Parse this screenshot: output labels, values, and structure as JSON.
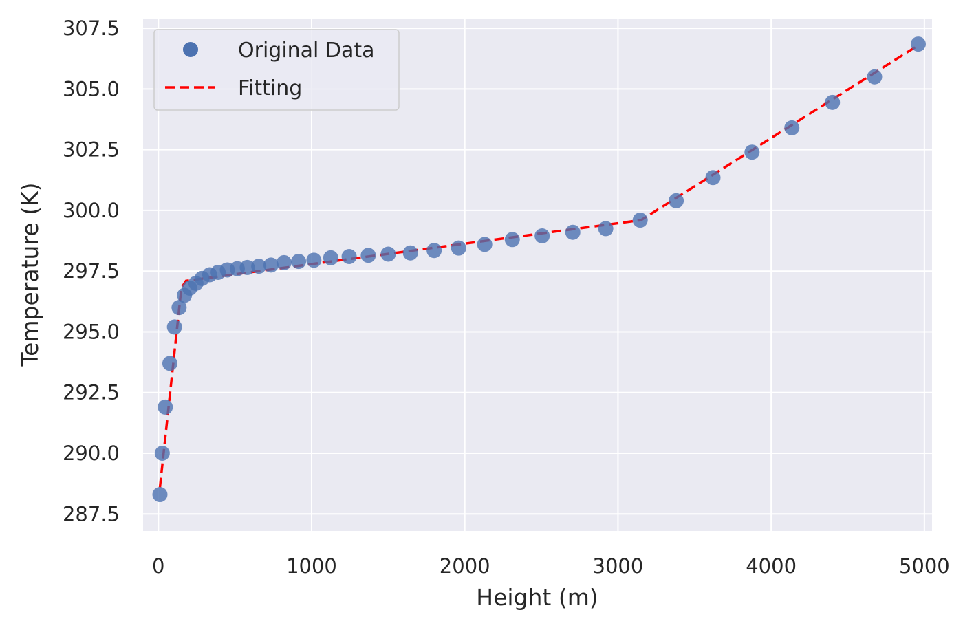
{
  "chart_data": {
    "type": "scatter",
    "xlabel": "Height (m)",
    "ylabel": "Temperature (K)",
    "xlim": [
      -100,
      5050
    ],
    "ylim": [
      286.8,
      307.9
    ],
    "xticks": [
      0,
      1000,
      2000,
      3000,
      4000,
      5000
    ],
    "xtick_labels": [
      "0",
      "1000",
      "2000",
      "3000",
      "4000",
      "5000"
    ],
    "yticks": [
      287.5,
      290.0,
      292.5,
      295.0,
      297.5,
      300.0,
      302.5,
      305.0,
      307.5
    ],
    "ytick_labels": [
      "287.5",
      "290.0",
      "292.5",
      "295.0",
      "297.5",
      "300.0",
      "302.5",
      "305.0",
      "307.5"
    ],
    "grid": true,
    "legend_position": "top-left",
    "colors": {
      "background": "#eaeaf2",
      "grid": "#ffffff",
      "points": "#4c72b0",
      "fit": "#ff0000"
    },
    "series": [
      {
        "name": "Original Data",
        "kind": "points",
        "x": [
          10,
          25,
          45,
          75,
          105,
          135,
          170,
          205,
          245,
          285,
          335,
          390,
          450,
          515,
          580,
          655,
          735,
          820,
          915,
          1015,
          1125,
          1245,
          1370,
          1500,
          1645,
          1800,
          1960,
          2130,
          2310,
          2505,
          2705,
          2920,
          3145,
          3380,
          3620,
          3875,
          4135,
          4400,
          4675,
          4960
        ],
        "y": [
          288.3,
          290.0,
          291.9,
          293.7,
          295.2,
          296.0,
          296.5,
          296.8,
          297.0,
          297.2,
          297.35,
          297.45,
          297.55,
          297.6,
          297.65,
          297.7,
          297.75,
          297.85,
          297.9,
          297.95,
          298.05,
          298.1,
          298.15,
          298.2,
          298.25,
          298.35,
          298.45,
          298.6,
          298.8,
          298.95,
          299.1,
          299.25,
          299.6,
          300.4,
          301.35,
          302.4,
          303.4,
          304.45,
          305.5,
          306.85
        ]
      },
      {
        "name": "Fitting",
        "kind": "dashed-line",
        "x": [
          10,
          150,
          180,
          3150,
          4960
        ],
        "y": [
          288.6,
          296.8,
          297.1,
          299.6,
          306.8
        ]
      }
    ]
  }
}
